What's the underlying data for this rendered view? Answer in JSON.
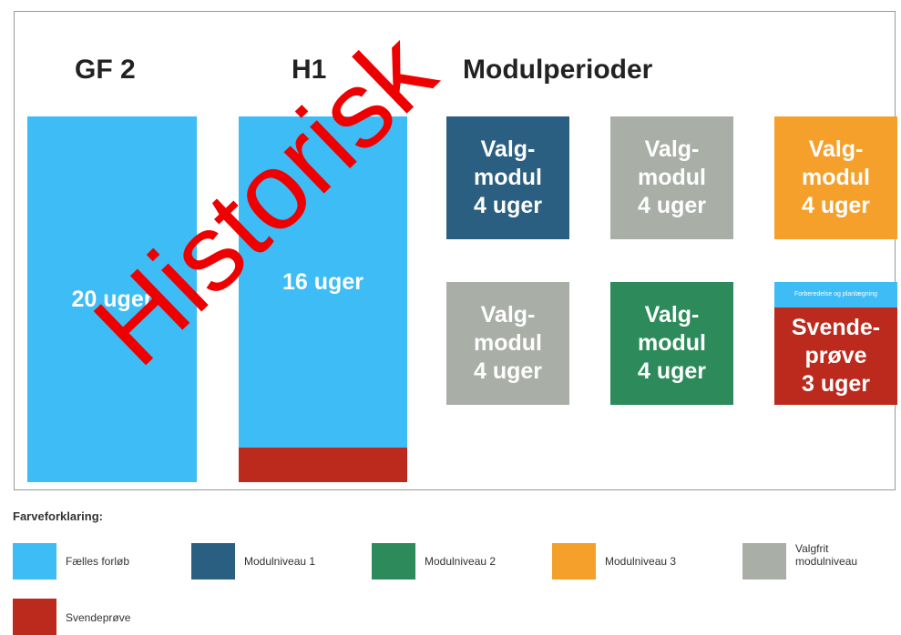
{
  "header": {
    "gf2": "GF 2",
    "h1": "H1",
    "modules": "Modulperioder"
  },
  "bars": [
    {
      "label": "20 uger"
    },
    {
      "label": "16 uger"
    }
  ],
  "modules": [
    {
      "label": "Valg-\nmodul\n4 uger"
    },
    {
      "label": "Valg-\nmodul\n4 uger"
    },
    {
      "label": "Valg-\nmodul\n4 uger"
    },
    {
      "label": "Valg-\nmodul\n4 uger"
    },
    {
      "label": "Valg-\nmodul\n4 uger"
    }
  ],
  "final_exam": {
    "note": "Forberedelse og planlægning",
    "label": "Svende-\nprøve\n3 uger"
  },
  "legend": {
    "title": "Farveforklaring:",
    "items": [
      "Fælles forløb",
      "Modulniveau 1",
      "Modulniveau 2",
      "Modulniveau 3",
      "Valgfrit\nmodulniveau",
      "Svendeprøve"
    ]
  },
  "watermark": "Historisk"
}
